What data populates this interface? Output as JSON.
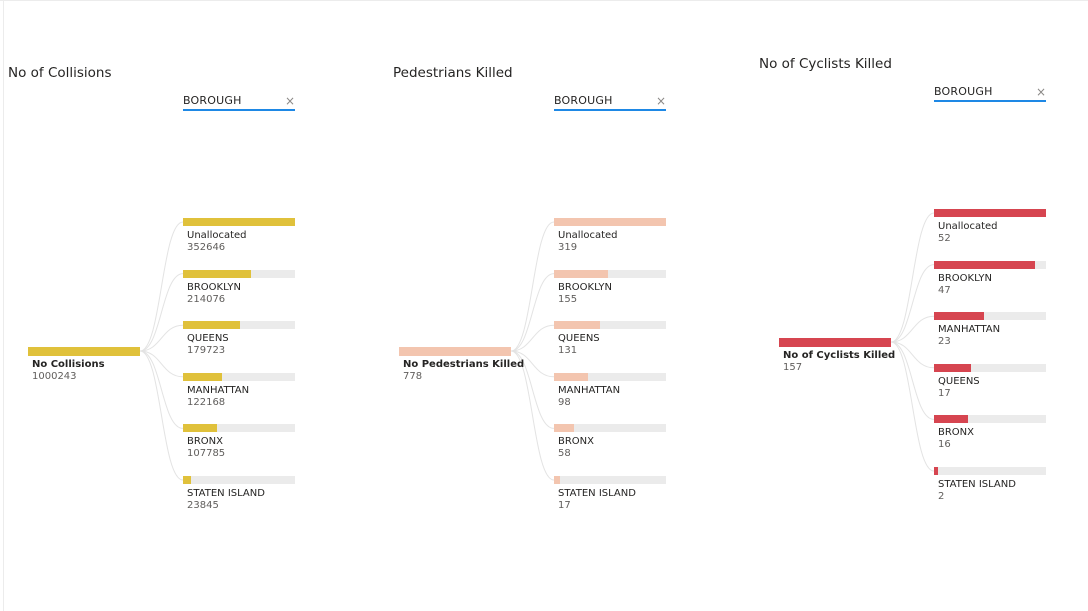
{
  "visuals": [
    {
      "title": "No of Collisions",
      "filter": {
        "label": "BOROUGH",
        "close_icon": "×"
      },
      "color": "#e0c13b",
      "root": {
        "label": "No Collisions",
        "value": "1000243"
      },
      "children": [
        {
          "label": "Unallocated",
          "value": "352646",
          "fraction": 1.0
        },
        {
          "label": "BROOKLYN",
          "value": "214076",
          "fraction": 0.607
        },
        {
          "label": "QUEENS",
          "value": "179723",
          "fraction": 0.51
        },
        {
          "label": "MANHATTAN",
          "value": "122168",
          "fraction": 0.346
        },
        {
          "label": "BRONX",
          "value": "107785",
          "fraction": 0.306
        },
        {
          "label": "STATEN ISLAND",
          "value": "23845",
          "fraction": 0.068
        }
      ]
    },
    {
      "title": "Pedestrians Killed",
      "filter": {
        "label": "BOROUGH",
        "close_icon": "×"
      },
      "color": "#f3c5af",
      "root": {
        "label": "No Pedestrians Killed",
        "value": "778"
      },
      "children": [
        {
          "label": "Unallocated",
          "value": "319",
          "fraction": 1.0
        },
        {
          "label": "BROOKLYN",
          "value": "155",
          "fraction": 0.486
        },
        {
          "label": "QUEENS",
          "value": "131",
          "fraction": 0.411
        },
        {
          "label": "MANHATTAN",
          "value": "98",
          "fraction": 0.307
        },
        {
          "label": "BRONX",
          "value": "58",
          "fraction": 0.182
        },
        {
          "label": "STATEN ISLAND",
          "value": "17",
          "fraction": 0.053
        }
      ]
    },
    {
      "title": "No of Cyclists Killed",
      "filter": {
        "label": "BOROUGH",
        "close_icon": "×"
      },
      "color": "#d64550",
      "root": {
        "label": "No of Cyclists Killed",
        "value": "157"
      },
      "children": [
        {
          "label": "Unallocated",
          "value": "52",
          "fraction": 1.0
        },
        {
          "label": "BROOKLYN",
          "value": "47",
          "fraction": 0.904
        },
        {
          "label": "MANHATTAN",
          "value": "23",
          "fraction": 0.442
        },
        {
          "label": "QUEENS",
          "value": "17",
          "fraction": 0.327
        },
        {
          "label": "BRONX",
          "value": "16",
          "fraction": 0.308
        },
        {
          "label": "STATEN ISLAND",
          "value": "2",
          "fraction": 0.038
        }
      ]
    }
  ]
}
